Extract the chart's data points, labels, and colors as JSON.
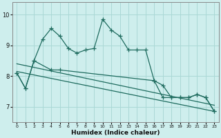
{
  "xlabel": "Humidex (Indice chaleur)",
  "bg_color": "#ceeeed",
  "grid_color": "#aad8d6",
  "line_color": "#1e6b5e",
  "xlim": [
    -0.5,
    23.5
  ],
  "ylim": [
    6.5,
    10.4
  ],
  "yticks": [
    7,
    8,
    9,
    10
  ],
  "xticks": [
    0,
    1,
    2,
    3,
    4,
    5,
    6,
    7,
    8,
    9,
    10,
    11,
    12,
    13,
    14,
    15,
    16,
    17,
    18,
    19,
    20,
    21,
    22,
    23
  ],
  "line1_x": [
    0,
    1,
    2,
    3,
    4,
    5,
    6,
    7,
    8,
    9,
    10,
    11,
    12,
    13,
    14,
    15,
    16,
    17,
    18,
    19,
    20,
    21,
    22,
    23
  ],
  "line1_y": [
    8.1,
    7.6,
    8.5,
    9.2,
    9.55,
    9.3,
    8.9,
    8.75,
    8.85,
    8.9,
    9.85,
    9.5,
    9.3,
    8.85,
    8.85,
    8.85,
    7.85,
    7.7,
    7.3,
    7.3,
    7.3,
    7.4,
    7.3,
    6.85
  ],
  "line2_x": [
    0,
    1,
    2,
    4,
    5,
    16,
    17,
    18,
    19,
    20,
    21,
    22,
    23
  ],
  "line2_y": [
    8.1,
    7.6,
    8.5,
    8.2,
    8.2,
    7.85,
    7.3,
    7.3,
    7.3,
    7.3,
    7.4,
    7.3,
    6.85
  ],
  "line3_x": [
    0,
    23
  ],
  "line3_y": [
    8.4,
    7.05
  ],
  "line4_x": [
    0,
    23
  ],
  "line4_y": [
    8.15,
    6.85
  ],
  "marker_size": 3,
  "linewidth": 0.9
}
